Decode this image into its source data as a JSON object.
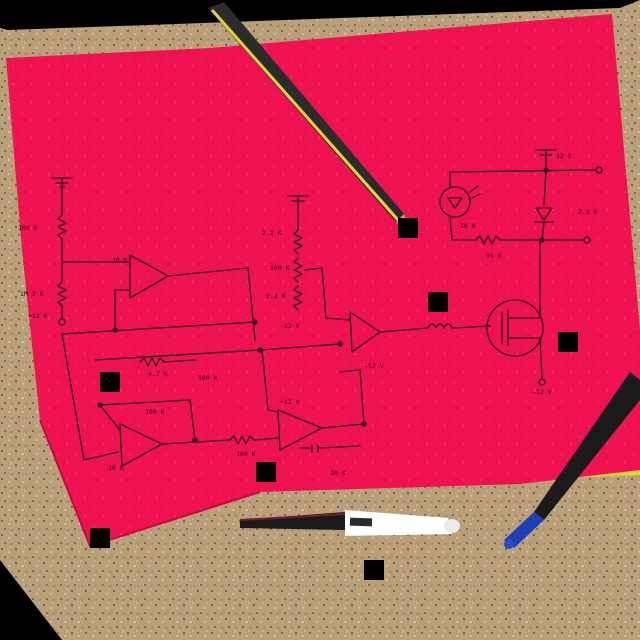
{
  "colors": {
    "background": "#000000",
    "desk": "#b9a07a",
    "paper": "#ef1250",
    "paper_edge": "#c20a3e",
    "paper_underlay": "#d9dc33",
    "ink": "#2a0d14",
    "pencil_body": "#2b2b2b",
    "pencil_stripe": "#e0d533",
    "pen_body": "#ffffff",
    "pen_cap": "#1a1a1a",
    "blue_pen": "#1e3fb5"
  },
  "objects": [
    "desk-surface",
    "red-paper-sheet",
    "hand-drawn-circuit-schematic",
    "yellow-black-pencil",
    "white-marker-pen",
    "blue-black-pen"
  ],
  "schematic_labels": [
    "100 K",
    "1M 2 K",
    "+12 V",
    "10 K",
    "2.2 K",
    "100 K",
    "2.2 K",
    "-12 V",
    "4.7 K",
    "100 K",
    "100 K",
    "10 K",
    "-12 V",
    "10 K",
    "2.2 K",
    "12 V",
    "10 K",
    "-12 V",
    "+12 V",
    "100 K",
    "10 K"
  ]
}
